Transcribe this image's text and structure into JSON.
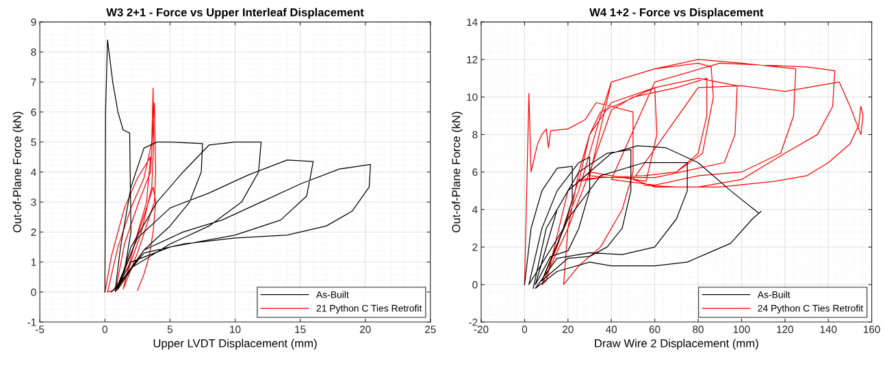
{
  "chart_data": [
    {
      "type": "line",
      "title": "W3 2+1 - Force vs Upper Interleaf Displacement",
      "xlabel": "Upper LVDT Displacement (mm)",
      "ylabel": "Out-of-Plane Force (kN)",
      "xlim": [
        -5,
        25
      ],
      "ylim": [
        -1,
        9
      ],
      "xticks": [
        -5,
        0,
        5,
        10,
        15,
        20,
        25
      ],
      "yticks": [
        -1,
        0,
        1,
        2,
        3,
        4,
        5,
        6,
        7,
        8,
        9
      ],
      "grid": true,
      "legend": "bottom right",
      "series": [
        {
          "name": "As-Built",
          "color": "#000000",
          "x": [
            0,
            0.05,
            0.2,
            0.6,
            1.0,
            1.4,
            1.9,
            2.0,
            1.5,
            0.8,
            1.2,
            2,
            3,
            4,
            5,
            7.5,
            7.4,
            6.5,
            5,
            3,
            1,
            2,
            4,
            6,
            8,
            10,
            12,
            11.8,
            10.5,
            8,
            5,
            2,
            0.8,
            2.5,
            5,
            8,
            11,
            14,
            16,
            15.5,
            13.5,
            10,
            5,
            2,
            1,
            3,
            6,
            9,
            12,
            15,
            18,
            20.4,
            20.3,
            19,
            17,
            14,
            10,
            6,
            3,
            1.5,
            0.5
          ],
          "values": [
            0,
            6,
            8.4,
            7,
            6,
            5.4,
            5.3,
            2,
            0.7,
            0.1,
            1.5,
            3.5,
            4.8,
            5,
            5,
            4.95,
            4,
            3,
            2.2,
            1.4,
            0.1,
            1.5,
            3.0,
            4.0,
            4.9,
            5,
            5,
            4,
            3,
            2.2,
            1.6,
            0.8,
            0.05,
            1.8,
            2.8,
            3.3,
            3.9,
            4.4,
            4.35,
            3.2,
            2.4,
            1.9,
            1.5,
            1.0,
            0.2,
            1.4,
            2.0,
            2.4,
            3.0,
            3.6,
            4.1,
            4.25,
            3.5,
            2.7,
            2.2,
            1.9,
            1.8,
            1.6,
            1.3,
            0.5,
            0.0
          ]
        },
        {
          "name": "21 Python C Ties Retrofit",
          "color": "#ff0000",
          "x": [
            0,
            0.5,
            1.5,
            2.5,
            3.5,
            3.2,
            2.2,
            1.0,
            0.2,
            1,
            2,
            3,
            3.6,
            3.7,
            3.75,
            3.6,
            2.8,
            1.6,
            0.8,
            1.5,
            2.6,
            3.5,
            3.8,
            3.9,
            3.8,
            2.5,
            1.4,
            2.2,
            3.2,
            3.7,
            3.9,
            3.7,
            3.4,
            3.0,
            2.5
          ],
          "values": [
            0,
            1.2,
            2.8,
            3.8,
            4.5,
            3,
            1.5,
            0.1,
            0,
            1.5,
            2.8,
            3.8,
            5,
            6.8,
            5,
            3.5,
            2,
            0.5,
            0,
            1.6,
            3,
            4,
            6.3,
            4,
            3,
            1.3,
            0.1,
            1.5,
            2.8,
            3.5,
            3.0,
            2,
            1.2,
            0.6,
            0.05
          ]
        }
      ]
    },
    {
      "type": "line",
      "title": "W4 1+2 - Force vs Displacement",
      "xlabel": "Draw Wire 2 Displacement (mm)",
      "ylabel": "Out-of-Plane Force (kN)",
      "xlim": [
        -20,
        160
      ],
      "ylim": [
        -2,
        14
      ],
      "xticks": [
        -20,
        0,
        20,
        40,
        60,
        80,
        100,
        120,
        140,
        160
      ],
      "yticks": [
        -2,
        0,
        2,
        4,
        6,
        8,
        10,
        12,
        14
      ],
      "grid": true,
      "legend": "bottom right",
      "series": [
        {
          "name": "As-Built",
          "color": "#000000",
          "x": [
            0,
            3,
            8,
            15,
            22,
            22,
            18,
            10,
            2,
            8,
            15,
            25,
            30,
            30,
            25,
            20,
            12,
            5,
            15,
            25,
            38,
            49,
            49,
            45,
            38,
            30,
            20,
            8,
            20,
            35,
            55,
            75,
            75,
            70,
            60,
            45,
            30,
            15,
            5,
            15,
            30,
            40,
            60,
            75,
            85,
            95,
            105,
            109,
            108,
            95,
            80,
            65,
            52,
            40,
            28,
            20,
            10,
            4
          ],
          "values": [
            0,
            3,
            5,
            6.2,
            6.3,
            4.5,
            3,
            1.5,
            0,
            3,
            5,
            6.5,
            6.8,
            5,
            3,
            1.8,
            1.5,
            0,
            4,
            6,
            7,
            7.2,
            5,
            3,
            2,
            1.5,
            1.4,
            0.2,
            3.5,
            5.8,
            6.5,
            6.5,
            5,
            3.5,
            2,
            1.6,
            1.7,
            1.4,
            -0.2,
            0.7,
            1.2,
            1,
            1,
            1.2,
            1.7,
            2.2,
            3.5,
            3.9,
            3.8,
            5,
            6.5,
            7.3,
            7.4,
            7,
            5.8,
            5,
            3,
            -0.2
          ]
        },
        {
          "name": "24 Python C Ties Retrofit",
          "color": "#ff0000",
          "x": [
            0,
            1,
            2,
            3,
            4,
            6,
            8,
            10,
            11,
            12,
            20,
            28,
            33,
            50,
            50,
            45,
            35,
            25,
            18,
            20,
            25,
            30,
            35,
            45,
            60,
            61,
            56,
            40,
            30,
            20,
            10,
            8,
            20,
            30,
            40,
            50,
            70,
            84,
            84,
            80,
            70,
            55,
            35,
            25,
            15,
            8,
            25,
            35,
            40,
            60,
            80,
            86,
            87,
            82,
            70,
            55,
            35,
            25,
            30,
            40,
            60,
            80,
            98,
            97,
            92,
            80,
            60,
            40,
            30,
            40,
            60,
            80,
            100,
            125,
            124,
            118,
            100,
            80,
            60,
            40,
            60,
            90,
            130,
            143,
            142,
            135,
            120,
            100,
            80,
            60,
            50,
            80,
            100,
            120,
            145,
            150,
            155,
            156,
            155,
            154,
            150,
            140,
            130,
            115,
            90,
            70,
            55
          ],
          "values": [
            0,
            5,
            10.2,
            6,
            6.5,
            7.5,
            8,
            8.3,
            7.3,
            8.2,
            8.3,
            8.8,
            9.7,
            9.2,
            6,
            4,
            2,
            1,
            0,
            3,
            6,
            8,
            9.2,
            9.7,
            10.5,
            8,
            5.5,
            5.8,
            6,
            5,
            0.2,
            0,
            3,
            6,
            9.3,
            10,
            10.5,
            11,
            9,
            7,
            6,
            5.8,
            5.7,
            5.6,
            2,
            0.2,
            5,
            9,
            10.8,
            11.5,
            11.8,
            11.6,
            10,
            7,
            6,
            5.8,
            5.7,
            5.5,
            8,
            9.7,
            10.5,
            11,
            10.6,
            8,
            6.5,
            6.2,
            5.7,
            5.7,
            5.8,
            10.8,
            11.5,
            12,
            11.8,
            11.5,
            9,
            7,
            6,
            5.8,
            5.3,
            5.6,
            10.8,
            11.8,
            11.6,
            11.4,
            9.5,
            8,
            7,
            5.6,
            5.2,
            5.2,
            5.6,
            10.5,
            10.6,
            10.3,
            10.8,
            9.5,
            8,
            9,
            9.5,
            8.5,
            7.5,
            6.5,
            5.8,
            5.5,
            5.2,
            5.2,
            5.3
          ]
        }
      ]
    }
  ]
}
